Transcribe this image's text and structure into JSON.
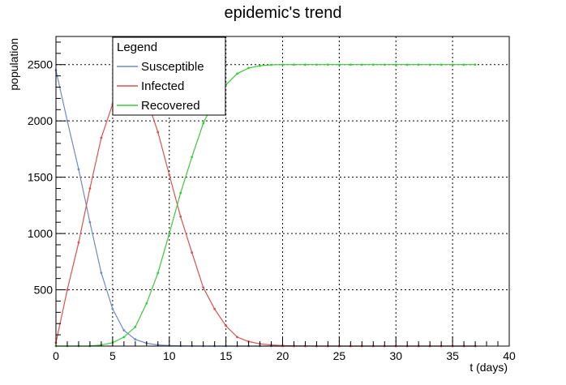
{
  "chart_data": {
    "type": "line",
    "title": "epidemic's trend",
    "xlabel": "t (days)",
    "ylabel": "population",
    "xlim": [
      0,
      40
    ],
    "ylim": [
      0,
      2750
    ],
    "x_ticks": [
      0,
      5,
      10,
      15,
      20,
      25,
      30,
      35,
      40
    ],
    "y_ticks": [
      500,
      1000,
      1500,
      2000,
      2500
    ],
    "grid": true,
    "legend": {
      "title": "Legend",
      "placement": "top-left"
    },
    "series": [
      {
        "name": "Susceptible",
        "color": "#6f88c8",
        "x": [
          0,
          1,
          2,
          3,
          4,
          5,
          6,
          7,
          8,
          9,
          10,
          11,
          12,
          13,
          14,
          15,
          16,
          17,
          18,
          19,
          20,
          21,
          22,
          23,
          24,
          25,
          26,
          27,
          28,
          29,
          30,
          31,
          32,
          33,
          34,
          35,
          36,
          37
        ],
        "y": [
          2450,
          2000,
          1570,
          1100,
          650,
          330,
          140,
          60,
          25,
          10,
          5,
          2,
          1,
          0,
          0,
          0,
          0,
          0,
          0,
          0,
          0,
          0,
          0,
          0,
          0,
          0,
          0,
          0,
          0,
          0,
          0,
          0,
          0,
          0,
          0,
          0,
          0,
          0
        ]
      },
      {
        "name": "Infected",
        "color": "#d9534f",
        "x": [
          0,
          1,
          2,
          3,
          4,
          5,
          6,
          7,
          8,
          9,
          10,
          11,
          12,
          13,
          14,
          15,
          16,
          17,
          18,
          19,
          20,
          21,
          22,
          23,
          24,
          25,
          26,
          27,
          28,
          29,
          30,
          31,
          32,
          33,
          34,
          35,
          36,
          37
        ],
        "y": [
          30,
          500,
          920,
          1400,
          1850,
          2150,
          2350,
          2320,
          2200,
          1900,
          1520,
          1150,
          830,
          520,
          330,
          180,
          80,
          40,
          20,
          10,
          5,
          2,
          1,
          0,
          0,
          0,
          0,
          0,
          0,
          0,
          0,
          0,
          0,
          0,
          0,
          0,
          0,
          0
        ]
      },
      {
        "name": "Recovered",
        "color": "#3cc93c",
        "x": [
          0,
          1,
          2,
          3,
          4,
          5,
          6,
          7,
          8,
          9,
          10,
          11,
          12,
          13,
          14,
          15,
          16,
          17,
          18,
          19,
          20,
          21,
          22,
          23,
          24,
          25,
          26,
          27,
          28,
          29,
          30,
          31,
          32,
          33,
          34,
          35,
          36,
          37
        ],
        "y": [
          0,
          0,
          0,
          0,
          10,
          30,
          80,
          170,
          380,
          650,
          1000,
          1360,
          1680,
          1980,
          2180,
          2320,
          2420,
          2470,
          2490,
          2498,
          2500,
          2500,
          2500,
          2500,
          2500,
          2500,
          2500,
          2500,
          2500,
          2500,
          2500,
          2500,
          2500,
          2500,
          2500,
          2500,
          2500,
          2500
        ]
      }
    ]
  }
}
